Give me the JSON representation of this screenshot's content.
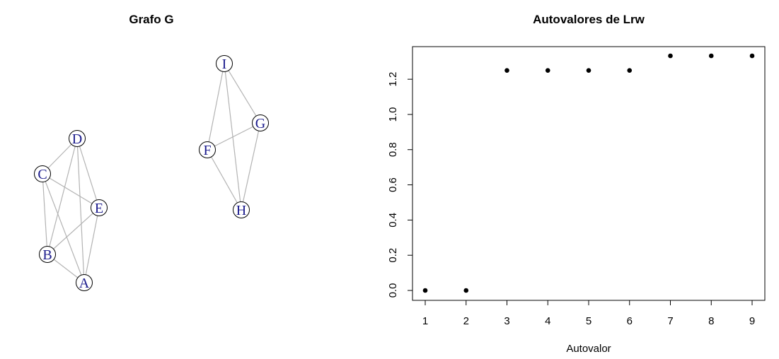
{
  "graph_panel": {
    "title": "Grafo G",
    "nodes": [
      "A",
      "B",
      "C",
      "D",
      "E",
      "F",
      "G",
      "H",
      "I"
    ],
    "edges": [
      [
        "A",
        "B"
      ],
      [
        "A",
        "C"
      ],
      [
        "A",
        "D"
      ],
      [
        "A",
        "E"
      ],
      [
        "B",
        "C"
      ],
      [
        "B",
        "D"
      ],
      [
        "B",
        "E"
      ],
      [
        "C",
        "D"
      ],
      [
        "C",
        "E"
      ],
      [
        "D",
        "E"
      ],
      [
        "F",
        "G"
      ],
      [
        "F",
        "H"
      ],
      [
        "F",
        "I"
      ],
      [
        "G",
        "H"
      ],
      [
        "G",
        "I"
      ],
      [
        "H",
        "I"
      ]
    ],
    "colors": {
      "edge": "#b3b3b3",
      "label": "#1a1a8c",
      "node_fill": "#ffffff",
      "node_border": "#000000"
    }
  },
  "chart_data": {
    "type": "scatter",
    "title": "Autovalores de Lrw",
    "xlabel": "Autovalor",
    "ylabel": "",
    "x": [
      1,
      2,
      3,
      4,
      5,
      6,
      7,
      8,
      9
    ],
    "y": [
      0.0,
      0.0,
      1.25,
      1.25,
      1.25,
      1.25,
      1.333,
      1.333,
      1.333
    ],
    "xlim": [
      1,
      9
    ],
    "ylim": [
      0,
      1.333
    ],
    "x_ticks": [
      "1",
      "2",
      "3",
      "4",
      "5",
      "6",
      "7",
      "8",
      "9"
    ],
    "y_ticks": [
      "0.0",
      "0.2",
      "0.4",
      "0.6",
      "0.8",
      "1.0",
      "1.2"
    ],
    "grid": false,
    "legend": "none",
    "point_color": "#000000"
  }
}
